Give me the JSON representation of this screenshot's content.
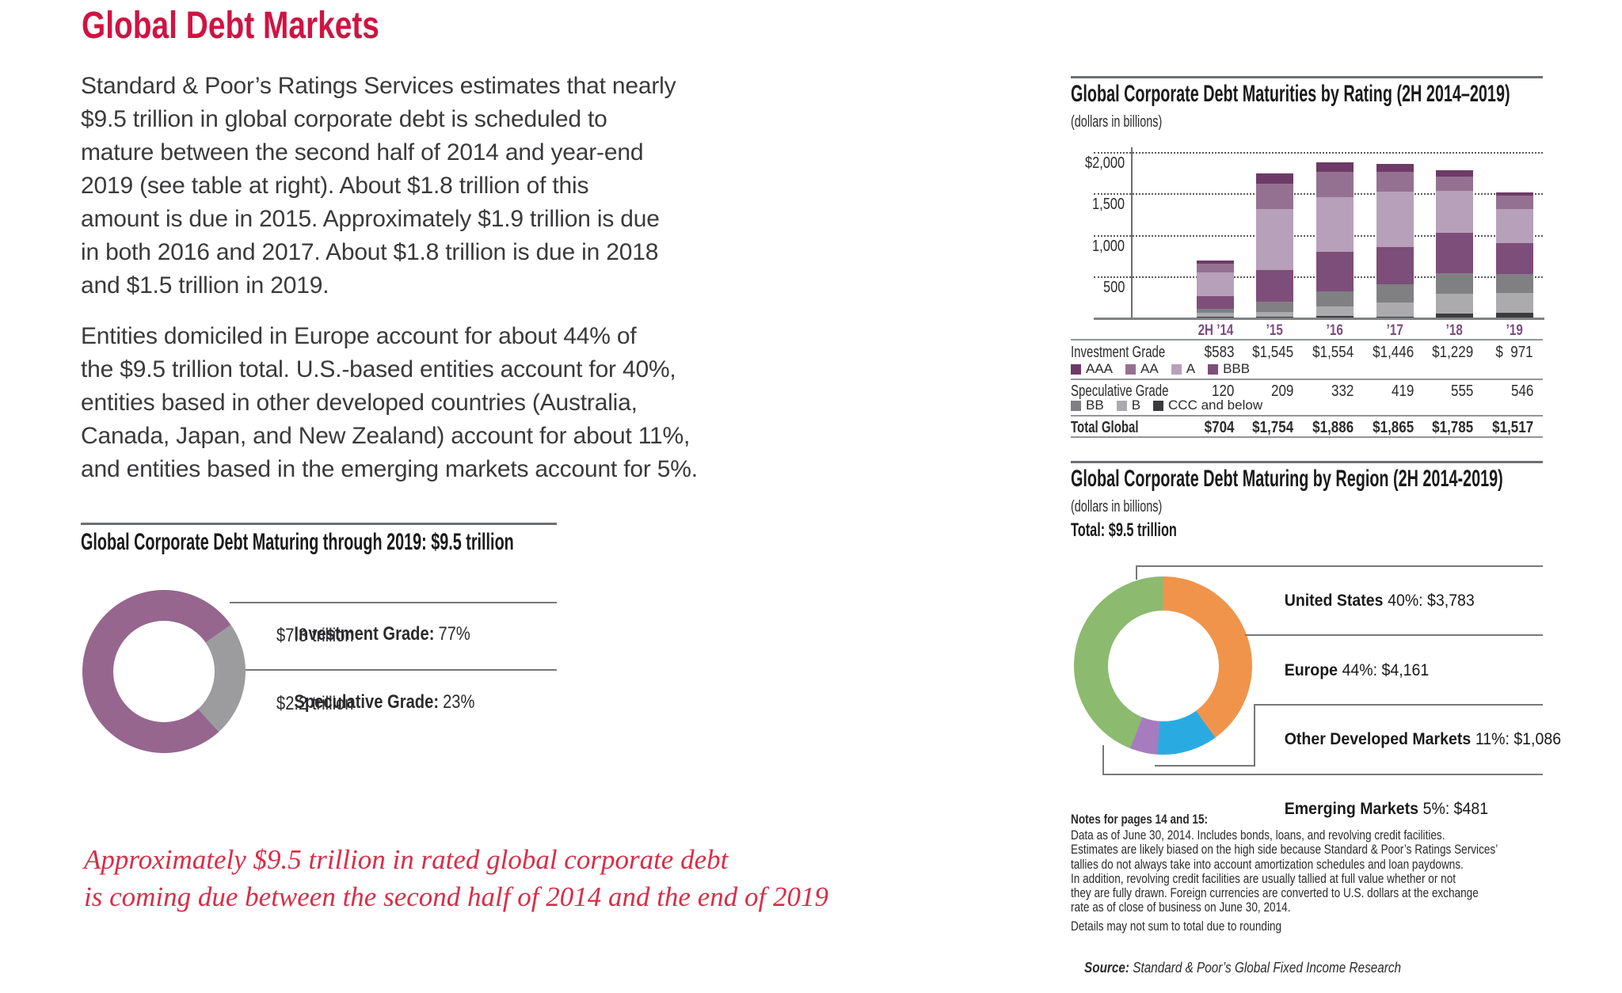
{
  "colors": {
    "accent_red": "#D01342",
    "quote_red": "#DB2C47",
    "text_dark": "#2B2B2D",
    "tick_purple": "#7C4C80",
    "rule_dark": "#6D6E71",
    "grid_dot": "#58595B",
    "axis_gray": "#808285"
  },
  "header": {
    "title": "Global Debt Markets"
  },
  "body": {
    "paragraph1": "Standard & Poor’s Ratings Services estimates that nearly\n$9.5 trillion in global corporate debt is scheduled to\nmature between the second half of 2014 and year-end\n2019 (see table at right). About $1.8 trillion of this\namount is due in 2015. Approximately $1.9 trillion is due\nin both 2016 and 2017. About $1.8 trillion is due in 2018\nand $1.5 trillion in 2019.",
    "paragraph2": "Entities domiciled in Europe account for about 44% of\nthe $9.5 trillion total. U.S.-based entities account for 40%,\nentities based in other developed countries (Australia,\nCanada, Japan, and New Zealand) account for about 11%,\nand entities based in the emerging markets account for 5%."
  },
  "quote": {
    "text": "Approximately $9.5 trillion in rated global corporate debt\nis coming due between the second half of 2014 and the end of 2019"
  },
  "notes": {
    "heading": "Notes for pages 14 and 15:",
    "body": "Data as of June 30, 2014. Includes bonds, loans, and revolving credit facilities.\nEstimates are likely biased on the high side because Standard & Poor’s Ratings Services’\ntallies do not always take into account amortization schedules and loan paydowns.\nIn addition, revolving credit facilities are usually tallied at full value whether or not\nthey are fully drawn. Foreign currencies are converted to U.S. dollars at the exchange\nrate as of close of business on June 30, 2014.",
    "rounding": "Details may not sum to total due to rounding",
    "source_label": "Source:",
    "source_text": " Standard & Poor’s Global Fixed Income Research"
  },
  "chart_data": [
    {
      "type": "bar",
      "title": "Global Corporate Debt Maturities by Rating (2H 2014–2019)",
      "subtitle": "(dollars in billions)",
      "categories": [
        "2H ’14",
        "’15",
        "’16",
        "’17",
        "’18",
        "’19"
      ],
      "stack_bottom_to_top": [
        "CCC and below",
        "B",
        "BB",
        "BBB",
        "A",
        "AA",
        "AAA"
      ],
      "series": [
        {
          "name": "AAA",
          "color": "#6E3A67",
          "values": [
            40,
            130,
            119,
            96,
            70,
            38
          ]
        },
        {
          "name": "AA",
          "color": "#957191",
          "values": [
            98,
            305,
            305,
            240,
            172,
            160
          ]
        },
        {
          "name": "A",
          "color": "#B7A0B9",
          "values": [
            290,
            725,
            650,
            662,
            507,
            405
          ]
        },
        {
          "name": "BBB",
          "color": "#7D4E79",
          "values": [
            155,
            385,
            480,
            448,
            480,
            368
          ]
        },
        {
          "name": "BB",
          "color": "#808083",
          "values": [
            45,
            128,
            184,
            215,
            254,
            229
          ]
        },
        {
          "name": "B",
          "color": "#ABABAD",
          "values": [
            45,
            49,
            110,
            172,
            238,
            243
          ]
        },
        {
          "name": "CCC and below",
          "color": "#3B3B3D",
          "values": [
            30,
            32,
            38,
            32,
            63,
            74
          ]
        }
      ],
      "ylim": [
        0,
        2000
      ],
      "yticks": [
        {
          "label": "$2,000",
          "value": 2000
        },
        {
          "label": "1,500",
          "value": 1500
        },
        {
          "label": "1,000",
          "value": 1000
        },
        {
          "label": "500",
          "value": 500
        }
      ],
      "grid": "dotted horizontal",
      "legend_position": "in table rows below chart",
      "table": {
        "rows": [
          {
            "kind": "values",
            "label": "Investment Grade",
            "bold": false,
            "values": [
              "$583",
              "$1,545",
              "$1,554",
              "$1,446",
              "$1,229",
              "$  971"
            ]
          },
          {
            "kind": "legend",
            "items": [
              "AAA",
              "AA",
              "A",
              "BBB"
            ]
          },
          {
            "kind": "values",
            "label": "Speculative Grade",
            "bold": false,
            "values": [
              "120",
              "209",
              "332",
              "419",
              "555",
              "546"
            ]
          },
          {
            "kind": "legend",
            "items": [
              "BB",
              "B",
              "CCC and below"
            ]
          },
          {
            "kind": "values",
            "label": "Total Global",
            "bold": true,
            "values": [
              "$704",
              "$1,754",
              "$1,886",
              "$1,865",
              "$1,785",
              "$1,517"
            ]
          }
        ]
      }
    },
    {
      "type": "pie",
      "donut": true,
      "title": "Global Corporate Debt Maturing through 2019: $9.5 trillion",
      "start_deg": 137.8,
      "slices": [
        {
          "label": "Investment Grade:",
          "value": 77,
          "pct": "77%",
          "amount": "$7.3 trillion",
          "color": "#96668F"
        },
        {
          "label": "Speculative Grade:",
          "value": 23,
          "pct": "23%",
          "amount": "$2.2 trillion",
          "color": "#9C9C9E"
        }
      ]
    },
    {
      "type": "pie",
      "donut": true,
      "title": "Global Corporate Debt Maturing by Region (2H 2014-2019)",
      "subtitle": "(dollars in billions)",
      "total_label": "Total: $9.5 trillion",
      "start_deg": 0,
      "slices": [
        {
          "label": "United States",
          "value": 40,
          "detail": "40%: $3,783",
          "color": "#F0944B"
        },
        {
          "label": "Other Developed Markets",
          "value": 11,
          "detail": "11%: $1,086",
          "color": "#29ABE2"
        },
        {
          "label": "Emerging Markets",
          "value": 5,
          "detail": "5%: $481",
          "color": "#A67CBE"
        },
        {
          "label": "Europe",
          "value": 44,
          "detail": "44%: $4,161",
          "color": "#8CBA6F"
        }
      ]
    }
  ]
}
